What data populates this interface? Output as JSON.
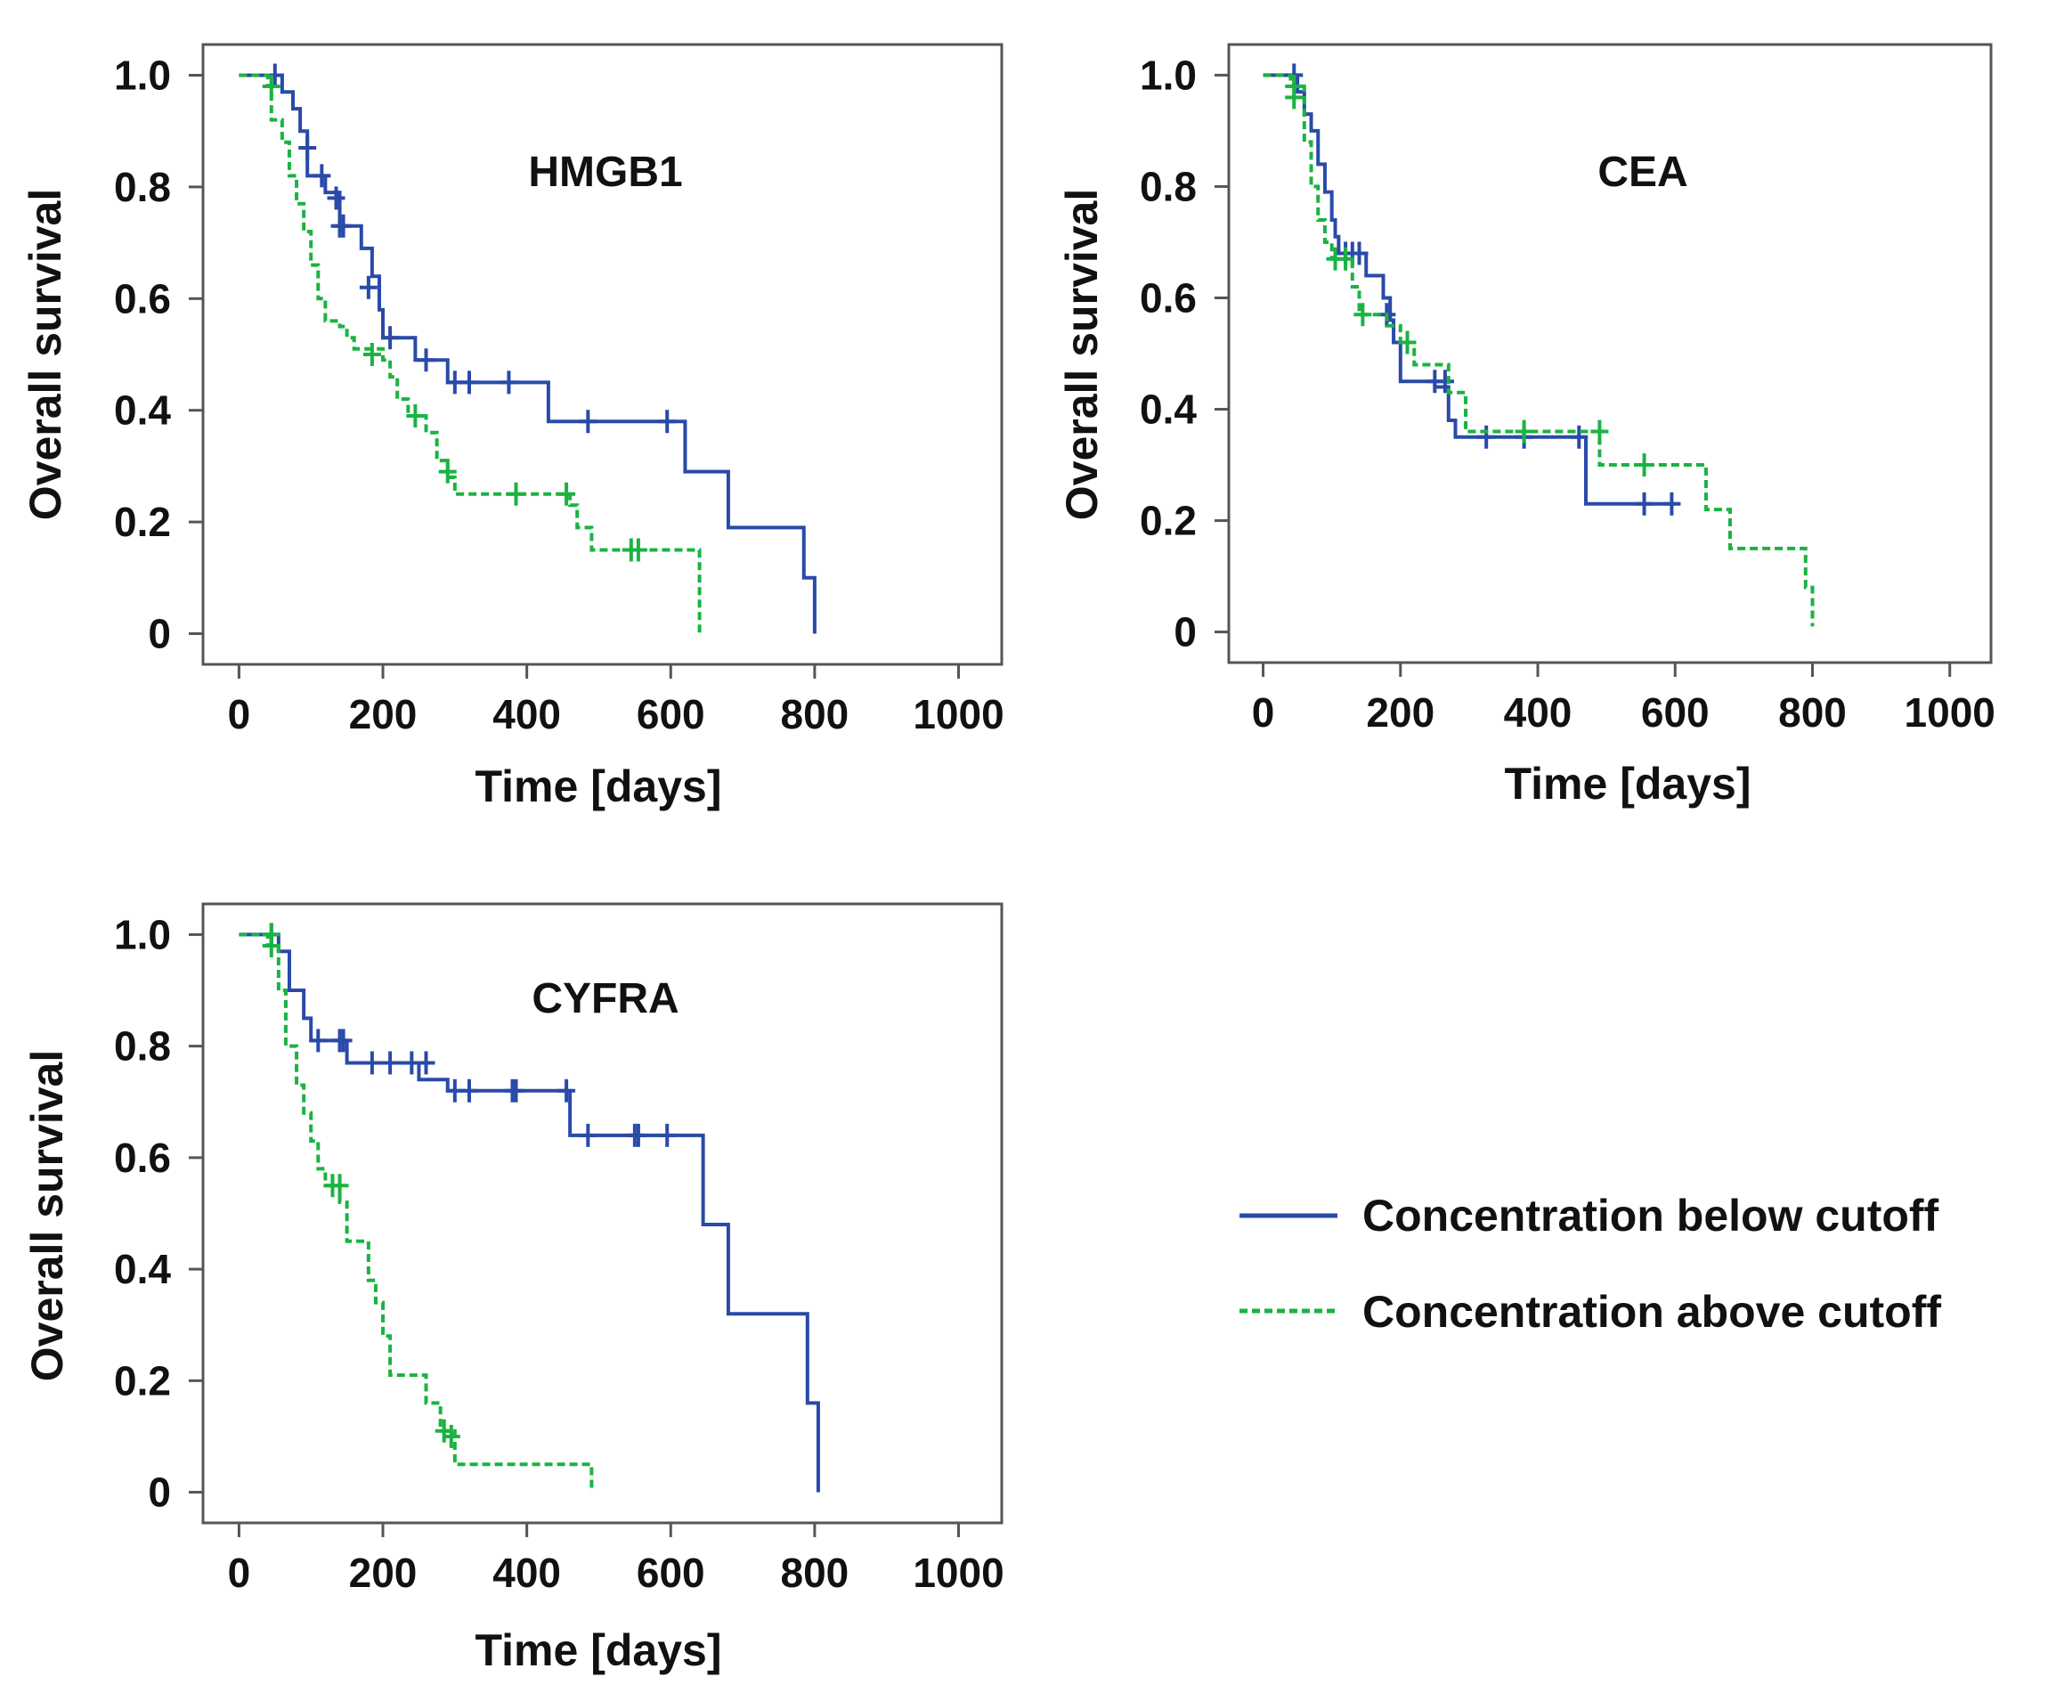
{
  "colors": {
    "below": "#2a4aa8",
    "above": "#1ab341",
    "axis": "#555555"
  },
  "legend": [
    {
      "key": "below",
      "label": "Concentration below cutoff",
      "style": "solid"
    },
    {
      "key": "above",
      "label": "Concentration above cutoff",
      "style": "dashed"
    }
  ],
  "chart_data": [
    {
      "type": "line",
      "step": "kaplan-meier",
      "title": "HMGB1",
      "xlabel": "Time [days]",
      "ylabel": "Overall survival",
      "xlim": [
        -50,
        1060
      ],
      "ylim": [
        -0.055,
        1.055
      ],
      "xticks": [
        0,
        200,
        400,
        600,
        800,
        1000
      ],
      "yticks": [
        0,
        0.2,
        0.4,
        0.6,
        0.8,
        1.0
      ],
      "ytick_labels": [
        "0",
        "0.2",
        "0.4",
        "0.6",
        "0.8",
        "1.0"
      ],
      "series": [
        {
          "name": "below",
          "key": "below",
          "steps": [
            [
              0,
              1.0
            ],
            [
              60,
              0.97
            ],
            [
              75,
              0.94
            ],
            [
              85,
              0.9
            ],
            [
              95,
              0.82
            ],
            [
              120,
              0.79
            ],
            [
              140,
              0.73
            ],
            [
              170,
              0.69
            ],
            [
              185,
              0.64
            ],
            [
              195,
              0.58
            ],
            [
              200,
              0.53
            ],
            [
              245,
              0.49
            ],
            [
              290,
              0.45
            ],
            [
              430,
              0.38
            ],
            [
              620,
              0.29
            ],
            [
              680,
              0.19
            ],
            [
              785,
              0.1
            ],
            [
              800,
              0.0
            ]
          ],
          "censored": [
            [
              50,
              1.0
            ],
            [
              95,
              0.87
            ],
            [
              115,
              0.82
            ],
            [
              135,
              0.78
            ],
            [
              140,
              0.73
            ],
            [
              145,
              0.73
            ],
            [
              180,
              0.62
            ],
            [
              210,
              0.53
            ],
            [
              260,
              0.49
            ],
            [
              300,
              0.45
            ],
            [
              320,
              0.45
            ],
            [
              375,
              0.45
            ],
            [
              485,
              0.38
            ],
            [
              595,
              0.38
            ]
          ]
        },
        {
          "name": "above",
          "key": "above",
          "steps": [
            [
              0,
              1.0
            ],
            [
              40,
              0.98
            ],
            [
              45,
              0.92
            ],
            [
              60,
              0.88
            ],
            [
              70,
              0.82
            ],
            [
              80,
              0.77
            ],
            [
              90,
              0.72
            ],
            [
              100,
              0.66
            ],
            [
              110,
              0.6
            ],
            [
              120,
              0.56
            ],
            [
              140,
              0.55
            ],
            [
              150,
              0.53
            ],
            [
              160,
              0.51
            ],
            [
              200,
              0.49
            ],
            [
              210,
              0.46
            ],
            [
              220,
              0.42
            ],
            [
              235,
              0.39
            ],
            [
              260,
              0.36
            ],
            [
              275,
              0.31
            ],
            [
              290,
              0.28
            ],
            [
              300,
              0.25
            ],
            [
              460,
              0.23
            ],
            [
              470,
              0.19
            ],
            [
              490,
              0.15
            ],
            [
              640,
              0.0
            ]
          ],
          "censored": [
            [
              45,
              0.98
            ],
            [
              185,
              0.5
            ],
            [
              245,
              0.39
            ],
            [
              290,
              0.29
            ],
            [
              385,
              0.25
            ],
            [
              455,
              0.25
            ],
            [
              545,
              0.15
            ],
            [
              555,
              0.15
            ]
          ]
        }
      ]
    },
    {
      "type": "line",
      "step": "kaplan-meier",
      "title": "CEA",
      "xlabel": "Time [days]",
      "ylabel": "Overall survival",
      "xlim": [
        -50,
        1060
      ],
      "ylim": [
        -0.055,
        1.055
      ],
      "xticks": [
        0,
        200,
        400,
        600,
        800,
        1000
      ],
      "yticks": [
        0,
        0.2,
        0.4,
        0.6,
        0.8,
        1.0
      ],
      "ytick_labels": [
        "0",
        "0.2",
        "0.4",
        "0.6",
        "0.8",
        "1.0"
      ],
      "series": [
        {
          "name": "below",
          "key": "below",
          "steps": [
            [
              0,
              1.0
            ],
            [
              50,
              0.97
            ],
            [
              60,
              0.93
            ],
            [
              70,
              0.9
            ],
            [
              80,
              0.84
            ],
            [
              90,
              0.79
            ],
            [
              100,
              0.74
            ],
            [
              105,
              0.71
            ],
            [
              110,
              0.68
            ],
            [
              150,
              0.64
            ],
            [
              175,
              0.6
            ],
            [
              185,
              0.56
            ],
            [
              190,
              0.52
            ],
            [
              200,
              0.45
            ],
            [
              250,
              0.44
            ],
            [
              270,
              0.38
            ],
            [
              280,
              0.35
            ],
            [
              470,
              0.23
            ],
            [
              600,
              0.23
            ]
          ],
          "censored": [
            [
              45,
              1.0
            ],
            [
              120,
              0.68
            ],
            [
              130,
              0.68
            ],
            [
              140,
              0.68
            ],
            [
              180,
              0.57
            ],
            [
              250,
              0.45
            ],
            [
              265,
              0.45
            ],
            [
              325,
              0.35
            ],
            [
              380,
              0.35
            ],
            [
              460,
              0.35
            ],
            [
              555,
              0.23
            ],
            [
              595,
              0.23
            ]
          ]
        },
        {
          "name": "above",
          "key": "above",
          "steps": [
            [
              0,
              1.0
            ],
            [
              40,
              0.98
            ],
            [
              60,
              0.88
            ],
            [
              70,
              0.8
            ],
            [
              80,
              0.74
            ],
            [
              90,
              0.7
            ],
            [
              100,
              0.67
            ],
            [
              130,
              0.62
            ],
            [
              140,
              0.57
            ],
            [
              180,
              0.55
            ],
            [
              200,
              0.52
            ],
            [
              220,
              0.48
            ],
            [
              270,
              0.43
            ],
            [
              295,
              0.36
            ],
            [
              490,
              0.3
            ],
            [
              645,
              0.22
            ],
            [
              680,
              0.15
            ],
            [
              790,
              0.08
            ],
            [
              800,
              0.01
            ]
          ],
          "censored": [
            [
              45,
              0.98
            ],
            [
              45,
              0.96
            ],
            [
              105,
              0.67
            ],
            [
              120,
              0.67
            ],
            [
              145,
              0.57
            ],
            [
              210,
              0.52
            ],
            [
              380,
              0.36
            ],
            [
              490,
              0.36
            ],
            [
              555,
              0.3
            ]
          ]
        }
      ]
    },
    {
      "type": "line",
      "step": "kaplan-meier",
      "title": "CYFRA",
      "xlabel": "Time [days]",
      "ylabel": "Overall survival",
      "xlim": [
        -50,
        1060
      ],
      "ylim": [
        -0.055,
        1.055
      ],
      "xticks": [
        0,
        200,
        400,
        600,
        800,
        1000
      ],
      "yticks": [
        0,
        0.2,
        0.4,
        0.6,
        0.8,
        1.0
      ],
      "ytick_labels": [
        "0",
        "0.2",
        "0.4",
        "0.6",
        "0.8",
        "1.0"
      ],
      "series": [
        {
          "name": "below",
          "key": "below",
          "steps": [
            [
              0,
              1.0
            ],
            [
              55,
              0.97
            ],
            [
              70,
              0.9
            ],
            [
              90,
              0.85
            ],
            [
              100,
              0.81
            ],
            [
              150,
              0.77
            ],
            [
              250,
              0.74
            ],
            [
              290,
              0.72
            ],
            [
              460,
              0.64
            ],
            [
              645,
              0.48
            ],
            [
              680,
              0.32
            ],
            [
              790,
              0.16
            ],
            [
              805,
              0.0
            ]
          ],
          "censored": [
            [
              45,
              1.0
            ],
            [
              110,
              0.81
            ],
            [
              140,
              0.81
            ],
            [
              145,
              0.81
            ],
            [
              185,
              0.77
            ],
            [
              210,
              0.77
            ],
            [
              240,
              0.77
            ],
            [
              260,
              0.77
            ],
            [
              300,
              0.72
            ],
            [
              320,
              0.72
            ],
            [
              380,
              0.72
            ],
            [
              385,
              0.72
            ],
            [
              455,
              0.72
            ],
            [
              485,
              0.64
            ],
            [
              550,
              0.64
            ],
            [
              555,
              0.64
            ],
            [
              595,
              0.64
            ]
          ]
        },
        {
          "name": "above",
          "key": "above",
          "steps": [
            [
              0,
              1.0
            ],
            [
              40,
              0.98
            ],
            [
              55,
              0.9
            ],
            [
              65,
              0.8
            ],
            [
              80,
              0.73
            ],
            [
              90,
              0.68
            ],
            [
              100,
              0.63
            ],
            [
              110,
              0.58
            ],
            [
              120,
              0.55
            ],
            [
              140,
              0.52
            ],
            [
              150,
              0.45
            ],
            [
              180,
              0.38
            ],
            [
              190,
              0.34
            ],
            [
              200,
              0.28
            ],
            [
              210,
              0.21
            ],
            [
              260,
              0.16
            ],
            [
              280,
              0.11
            ],
            [
              300,
              0.05
            ],
            [
              490,
              0.0
            ]
          ],
          "censored": [
            [
              45,
              1.0
            ],
            [
              45,
              0.98
            ],
            [
              130,
              0.55
            ],
            [
              140,
              0.55
            ],
            [
              285,
              0.11
            ],
            [
              295,
              0.1
            ]
          ]
        }
      ]
    }
  ]
}
